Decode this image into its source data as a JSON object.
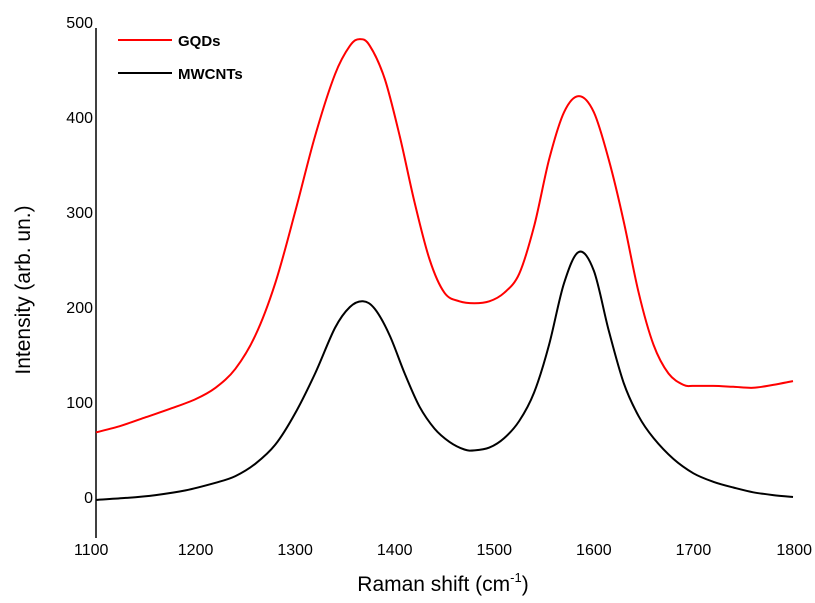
{
  "chart_data": {
    "type": "line",
    "xlabel": "Raman shift (cm",
    "xlabel_superscript": "-1",
    "xlabel_suffix": ")",
    "ylabel": "Intensity (arb. un.)",
    "xlim": [
      1100,
      1800
    ],
    "ylim": [
      -50,
      500
    ],
    "x_ticks": [
      1100,
      1200,
      1300,
      1400,
      1500,
      1600,
      1700,
      1800
    ],
    "y_ticks": [
      0,
      100,
      200,
      300,
      400,
      500
    ],
    "grid": false,
    "legend_position": "top-left",
    "series": [
      {
        "name": "GQDs",
        "color": "#ff0000",
        "points": [
          [
            1100,
            68
          ],
          [
            1125,
            75
          ],
          [
            1150,
            84
          ],
          [
            1175,
            93
          ],
          [
            1200,
            103
          ],
          [
            1220,
            115
          ],
          [
            1240,
            135
          ],
          [
            1260,
            170
          ],
          [
            1280,
            225
          ],
          [
            1300,
            300
          ],
          [
            1320,
            380
          ],
          [
            1340,
            445
          ],
          [
            1355,
            475
          ],
          [
            1365,
            482
          ],
          [
            1375,
            475
          ],
          [
            1390,
            440
          ],
          [
            1405,
            380
          ],
          [
            1420,
            310
          ],
          [
            1435,
            250
          ],
          [
            1450,
            215
          ],
          [
            1465,
            206
          ],
          [
            1480,
            204
          ],
          [
            1495,
            206
          ],
          [
            1510,
            215
          ],
          [
            1525,
            235
          ],
          [
            1540,
            285
          ],
          [
            1555,
            355
          ],
          [
            1570,
            405
          ],
          [
            1585,
            422
          ],
          [
            1600,
            405
          ],
          [
            1615,
            355
          ],
          [
            1630,
            290
          ],
          [
            1645,
            215
          ],
          [
            1660,
            160
          ],
          [
            1675,
            130
          ],
          [
            1690,
            118
          ],
          [
            1700,
            117
          ],
          [
            1720,
            117
          ],
          [
            1740,
            116
          ],
          [
            1760,
            115
          ],
          [
            1780,
            118
          ],
          [
            1800,
            122
          ]
        ]
      },
      {
        "name": "MWCNTs",
        "color": "#000000",
        "points": [
          [
            1100,
            -3
          ],
          [
            1130,
            -1
          ],
          [
            1160,
            2
          ],
          [
            1190,
            7
          ],
          [
            1220,
            15
          ],
          [
            1240,
            22
          ],
          [
            1260,
            35
          ],
          [
            1280,
            55
          ],
          [
            1300,
            88
          ],
          [
            1320,
            130
          ],
          [
            1340,
            178
          ],
          [
            1355,
            200
          ],
          [
            1368,
            206
          ],
          [
            1380,
            198
          ],
          [
            1395,
            170
          ],
          [
            1410,
            130
          ],
          [
            1425,
            95
          ],
          [
            1440,
            72
          ],
          [
            1455,
            58
          ],
          [
            1470,
            50
          ],
          [
            1480,
            49
          ],
          [
            1495,
            52
          ],
          [
            1510,
            62
          ],
          [
            1525,
            80
          ],
          [
            1540,
            110
          ],
          [
            1555,
            160
          ],
          [
            1570,
            225
          ],
          [
            1585,
            258
          ],
          [
            1600,
            238
          ],
          [
            1615,
            175
          ],
          [
            1630,
            120
          ],
          [
            1645,
            85
          ],
          [
            1660,
            62
          ],
          [
            1680,
            40
          ],
          [
            1700,
            25
          ],
          [
            1720,
            16
          ],
          [
            1740,
            10
          ],
          [
            1760,
            5
          ],
          [
            1780,
            2
          ],
          [
            1800,
            0
          ]
        ]
      }
    ]
  }
}
